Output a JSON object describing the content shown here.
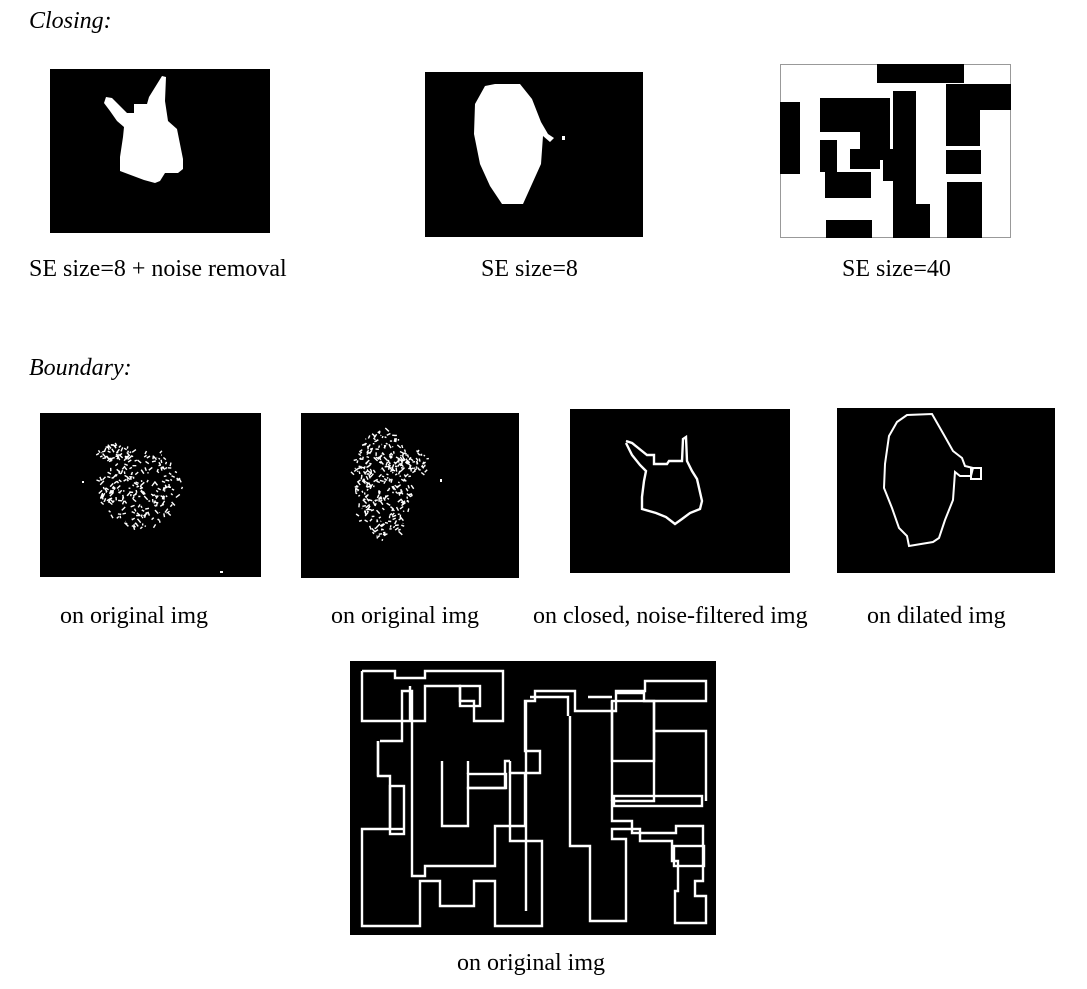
{
  "closing": {
    "heading": "Closing:",
    "captions": [
      "SE size=8 + noise removal",
      "SE size=8",
      "SE size=40"
    ]
  },
  "boundary": {
    "heading": "Boundary:",
    "captions": [
      "on original img",
      "on original img",
      "on closed, noise-filtered img",
      "on dilated img",
      "on original img"
    ]
  }
}
